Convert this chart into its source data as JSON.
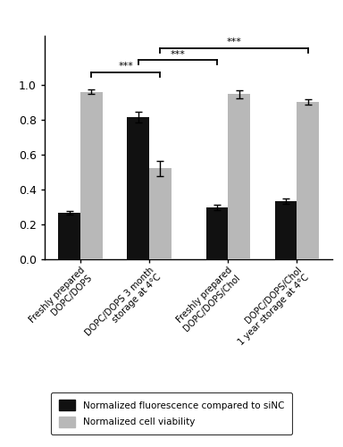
{
  "categories": [
    "Freshly prepared\nDOPC/DOPS",
    "DOPC/DOPS 3 month\nstorage at 4°C",
    "Freshly prepared\nDOPC/DOPS/Chol",
    "DOPC/DOPS/Chol\n1 year storage at 4°C"
  ],
  "black_values": [
    0.265,
    0.815,
    0.295,
    0.335
  ],
  "gray_values": [
    0.96,
    0.52,
    0.945,
    0.9
  ],
  "black_errors": [
    0.01,
    0.03,
    0.015,
    0.015
  ],
  "gray_errors": [
    0.015,
    0.045,
    0.025,
    0.015
  ],
  "bar_width": 0.32,
  "black_color": "#111111",
  "gray_color": "#b8b8b8",
  "ylim": [
    0.0,
    1.0
  ],
  "yticks": [
    0.0,
    0.2,
    0.4,
    0.6,
    0.8,
    1.0
  ],
  "legend_labels": [
    "Normalized fluorescence compared to siNC",
    "Normalized cell viability"
  ],
  "figsize": [
    3.84,
    5.0
  ],
  "dpi": 100
}
